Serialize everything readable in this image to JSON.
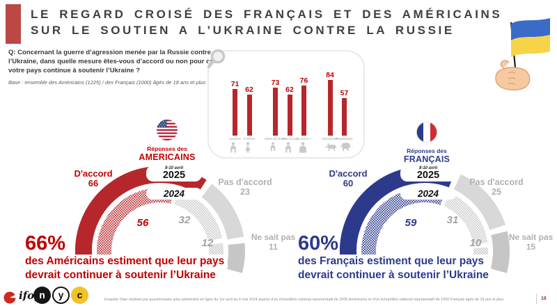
{
  "slide": {
    "title_line1": "LE REGARD CROISÉ DES FRANÇAIS ET DES AMÉRICAINS",
    "title_line2": "SUR LE SOUTIEN A L’UKRAINE CONTRE LA RUSSIE",
    "question": "Q: Concernant la guerre d’agression menée par la Russie contre l’Ukraine, dans quelle mesure êtes-vous d’accord ou non pour que votre pays continue à soutenir l’Ukraine ?",
    "base": "Base : ensemble des Américains (1225) / des Français (1000) âgés de 18 ans et plus",
    "page_number": "16"
  },
  "profile_panel": {
    "magnifier_icon": "magnifier-icon",
    "icons": [
      "man-icon",
      "woman-icon",
      "young-person-icon",
      "adult-person-icon",
      "senior-person-icon",
      "democrat-donkey-icon",
      "republican-elephant-icon"
    ]
  },
  "us": {
    "flag_icon": "us-flag-icon",
    "responses_prefix": "Réponses des",
    "group": "AMERICAINS",
    "wave_date": "8-10 avril",
    "wave_year": "2025",
    "previous_year": "2024",
    "agree_label": "D'accord",
    "agree_value": "66",
    "disagree_label": "Pas d'accord",
    "disagree_value": "23",
    "dk_label": "Ne sait pas",
    "dk_value": "11",
    "prev_agree": "56",
    "prev_disagree": "32",
    "prev_dk": "12",
    "big_percent": "66%",
    "statement_line1": "des Américains estiment que leur pays",
    "statement_line2": "devrait continuer à soutenir l’Ukraine"
  },
  "fr": {
    "flag_icon": "fr-flag-icon",
    "responses_prefix": "Réponses des",
    "group": "FRANÇAIS",
    "wave_date": "8-10 avril",
    "wave_year": "2025",
    "previous_year": "2024",
    "agree_label": "D'accord",
    "agree_value": "60",
    "disagree_label": "Pas d'accord",
    "disagree_value": "25",
    "dk_label": "Ne sait pas",
    "dk_value": "15",
    "prev_agree": "59",
    "prev_disagree": "31",
    "prev_dk": "10",
    "big_percent": "60%",
    "statement_line1": "des Français estiment que leur pays",
    "statement_line2": "devrait continuer à soutenir l’Ukraine"
  },
  "footer": {
    "ifop_text": "ifop",
    "n": "n",
    "y": "y",
    "c": "c",
    "source": "Enquête Otan réalisée par questionnaire auto-administré en ligne du 1er avril au 6 mai 2024 auprès d’un échantillon national représentatif de 1000 Américains et d’un échantillon national représentatif de 1000 Français âgés de 18 ans et plus."
  },
  "colors": {
    "red_fill": "#B6272C",
    "red_text": "#C00000",
    "blue": "#2D3A8C",
    "gray_light": "#D8D8D8",
    "gray_mid": "#C9C9C9",
    "title_bar": "#BC4845",
    "title_text": "#3F3F3F"
  },
  "chart_data": [
    {
      "type": "bar",
      "title": "",
      "categories": [
        "Hommes",
        "Femmes",
        "Moins de 35 ans",
        "35 à 64 ans",
        "65 ans et +",
        "Démocrates",
        "Républicains"
      ],
      "values": [
        71,
        62,
        73,
        62,
        76,
        84,
        57
      ],
      "group_breaks": [
        2,
        5
      ],
      "bar_color": "#B6272C",
      "ylim": [
        0,
        100
      ]
    },
    {
      "type": "donut",
      "layout": "half-gauge",
      "title": "Réponses des AMERICAINS",
      "categories": [
        "D'accord",
        "Pas d'accord",
        "Ne sait pas"
      ],
      "series": [
        {
          "name": "8-10 avril 2025",
          "values": [
            66,
            23,
            11
          ]
        },
        {
          "name": "2024",
          "values": [
            56,
            32,
            12
          ]
        }
      ],
      "accent": "#B6272C"
    },
    {
      "type": "donut",
      "layout": "half-gauge",
      "title": "Réponses des FRANÇAIS",
      "categories": [
        "D'accord",
        "Pas d'accord",
        "Ne sait pas"
      ],
      "series": [
        {
          "name": "8-10 avril 2025",
          "values": [
            60,
            25,
            15
          ]
        },
        {
          "name": "2024",
          "values": [
            59,
            31,
            10
          ]
        }
      ],
      "accent": "#2D3A8C"
    }
  ]
}
